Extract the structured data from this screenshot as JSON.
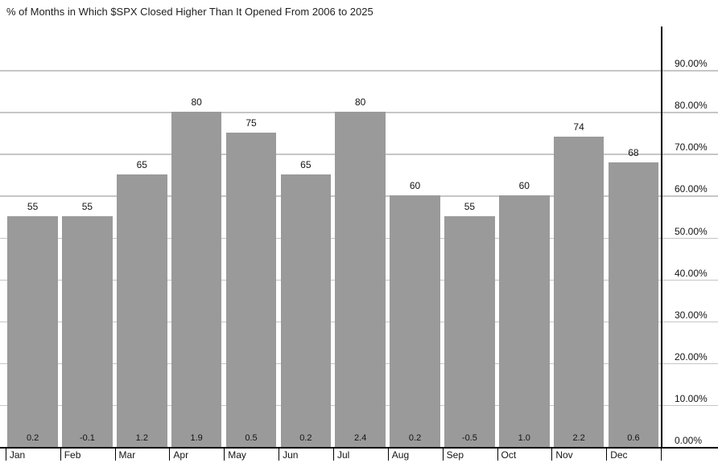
{
  "title": "% of Months in Which $SPX Closed Higher Than It Opened From 2006 to 2025",
  "chart_data": {
    "type": "bar",
    "title": "% of Months in Which $SPX Closed Higher Than It Opened From 2006 to 2025",
    "categories": [
      "Jan",
      "Feb",
      "Mar",
      "Apr",
      "May",
      "Jun",
      "Jul",
      "Aug",
      "Sep",
      "Oct",
      "Nov",
      "Dec"
    ],
    "series": [
      {
        "name": "pct-months-closed-higher",
        "values": [
          55,
          55,
          65,
          80,
          75,
          65,
          80,
          60,
          55,
          60,
          74,
          68
        ]
      },
      {
        "name": "avg-pct-change",
        "values": [
          0.2,
          -0.1,
          1.2,
          1.9,
          0.5,
          0.2,
          2.4,
          0.2,
          -0.5,
          1.0,
          2.2,
          0.6
        ]
      }
    ],
    "bar_top_labels": [
      "55",
      "55",
      "65",
      "80",
      "75",
      "65",
      "80",
      "60",
      "55",
      "60",
      "74",
      "68"
    ],
    "bar_bottom_labels": [
      "0.2",
      "-0.1",
      "1.2",
      "1.9",
      "0.5",
      "0.2",
      "2.4",
      "0.2",
      "-0.5",
      "1.0",
      "2.2",
      "0.6"
    ],
    "xlabel": "",
    "ylabel": "",
    "ylim": [
      0,
      100
    ],
    "y_tick_step": 10,
    "y_tick_labels": [
      "0.00%",
      "10.00%",
      "20.00%",
      "30.00%",
      "40.00%",
      "50.00%",
      "60.00%",
      "70.00%",
      "80.00%",
      "90.00%"
    ],
    "y_axis_position": "right",
    "grid": true,
    "legend": "none",
    "colors": {
      "bar": "#9a9a9a",
      "gridline": "#c6c6c6",
      "axis": "#000000",
      "text": "#141414",
      "background": "#ffffff"
    }
  }
}
